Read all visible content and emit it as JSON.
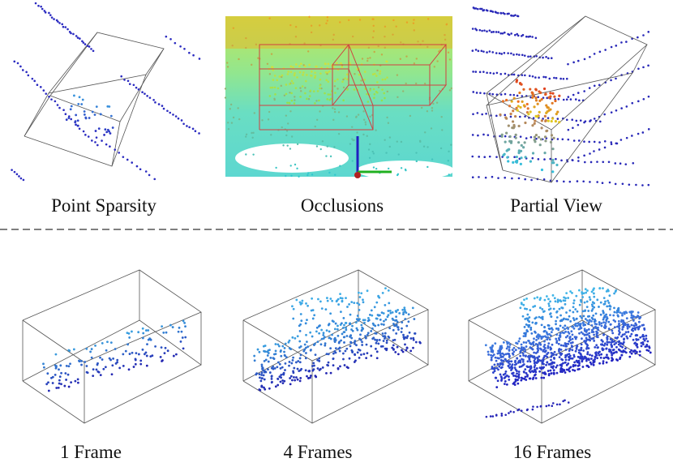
{
  "top_row": {
    "captions": [
      "Point Sparsity",
      "Occlusions",
      "Partial View"
    ]
  },
  "bottom_row": {
    "captions": [
      "1 Frame",
      "4 Frames",
      "16 Frames"
    ]
  }
}
